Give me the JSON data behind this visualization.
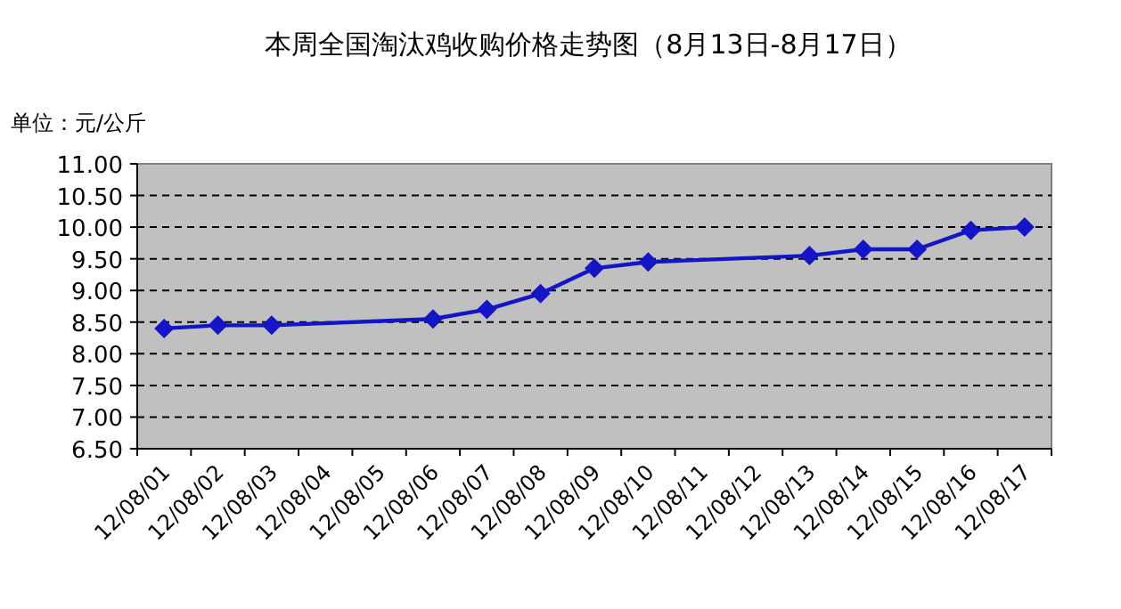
{
  "chart_data": {
    "type": "line",
    "title": "本周全国淘汰鸡收购价格走势图（8月13日-8月17日）",
    "ylabel": "单位：元/公斤",
    "categories": [
      "12/08/01",
      "12/08/02",
      "12/08/03",
      "12/08/04",
      "12/08/05",
      "12/08/06",
      "12/08/07",
      "12/08/08",
      "12/08/09",
      "12/08/10",
      "12/08/11",
      "12/08/12",
      "12/08/13",
      "12/08/14",
      "12/08/15",
      "12/08/16",
      "12/08/17"
    ],
    "series": [
      {
        "color": "#1414c8",
        "values": [
          8.4,
          8.45,
          8.45,
          null,
          null,
          8.55,
          8.7,
          8.95,
          9.35,
          9.45,
          null,
          null,
          9.55,
          9.65,
          9.65,
          9.95,
          10.0
        ]
      }
    ],
    "ylim": [
      6.5,
      11
    ],
    "yticks": [
      {
        "value": 6.5,
        "label": "6.50"
      },
      {
        "value": 7,
        "label": "7.00"
      },
      {
        "value": 7.5,
        "label": "7.50"
      },
      {
        "value": 8,
        "label": "8.00"
      },
      {
        "value": 8.5,
        "label": "8.50"
      },
      {
        "value": 9,
        "label": "9.00"
      },
      {
        "value": 9.5,
        "label": "9.50"
      },
      {
        "value": 10,
        "label": "10.00"
      },
      {
        "value": 10.5,
        "label": "10.50"
      },
      {
        "value": 11,
        "label": "11.00"
      }
    ],
    "grid": "y",
    "marker": "diamond",
    "line_style": "solid"
  }
}
